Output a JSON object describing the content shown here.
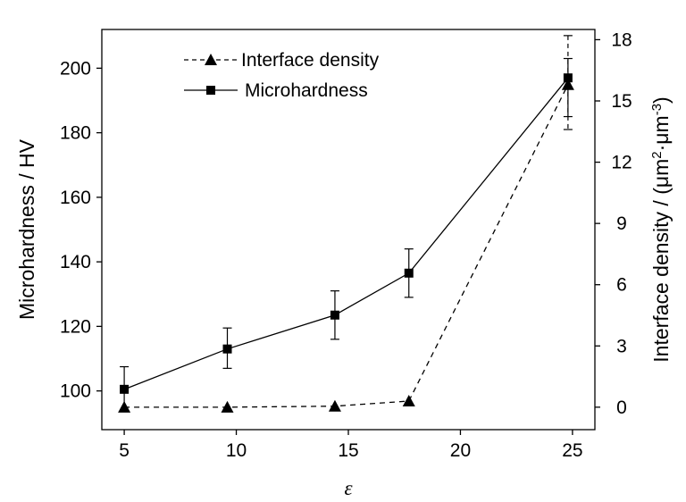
{
  "chart_data": {
    "type": "line",
    "x": [
      5,
      9.6,
      14.4,
      17.7,
      24.8
    ],
    "xlabel": "ε",
    "xlim": [
      4,
      26
    ],
    "xticks": [
      5,
      10,
      15,
      20,
      25
    ],
    "left_axis": {
      "label": "Microhardness / HV",
      "lim": [
        88,
        212
      ],
      "ticks": [
        100,
        120,
        140,
        160,
        180,
        200
      ]
    },
    "right_axis": {
      "label_main": "Interface density / (μm",
      "label_sup1": "2",
      "label_mid": "·μm",
      "label_sup2": "-3",
      "label_end": ")",
      "lim": [
        -1.1,
        18.5
      ],
      "ticks": [
        0,
        3,
        6,
        9,
        12,
        15,
        18
      ]
    },
    "series": [
      {
        "name": "Interface density",
        "axis": "right",
        "marker": "triangle",
        "line": "dashed",
        "values": [
          0,
          0,
          0.05,
          0.3,
          15.8
        ],
        "err_upper": [
          0,
          0,
          0,
          0,
          18.2
        ],
        "err_lower": [
          0,
          0,
          0,
          0,
          13.6
        ]
      },
      {
        "name": "Microhardness",
        "axis": "left",
        "marker": "square",
        "line": "solid",
        "values": [
          100.5,
          113,
          123.5,
          136.5,
          197
        ],
        "err_upper": [
          107.5,
          119.5,
          131,
          144,
          203
        ],
        "err_lower": [
          94,
          107,
          116,
          129,
          185
        ]
      }
    ],
    "legend_position": "top-left",
    "grid": false
  }
}
